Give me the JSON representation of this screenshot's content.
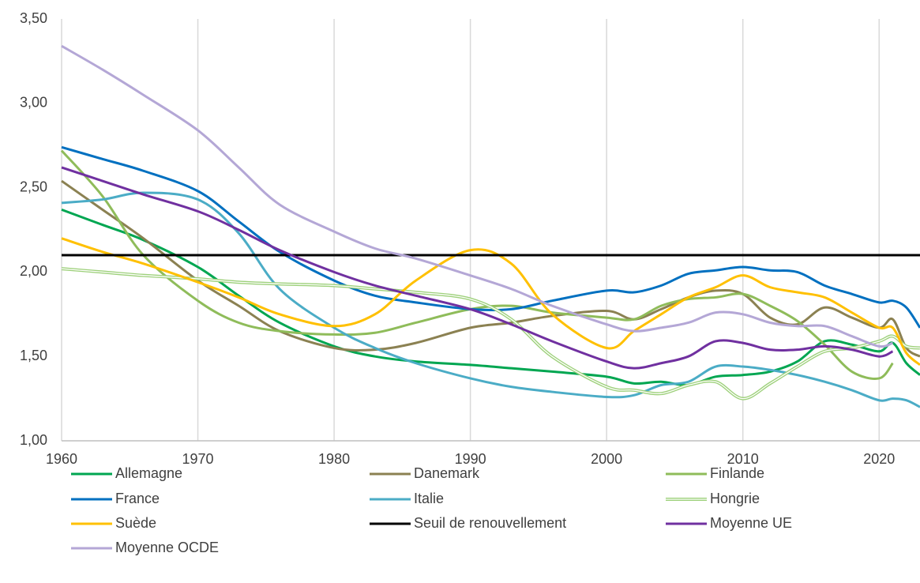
{
  "chart_data": {
    "type": "line",
    "x": [
      1960,
      1963,
      1966,
      1970,
      1973,
      1976,
      1980,
      1983,
      1986,
      1990,
      1993,
      1996,
      2000,
      2002,
      2004,
      2006,
      2008,
      2010,
      2012,
      2014,
      2016,
      2018,
      2020,
      2021,
      2022,
      2023
    ],
    "xlim": [
      1960,
      2023
    ],
    "xticks": [
      1960,
      1970,
      1980,
      1990,
      2000,
      2010,
      2020
    ],
    "ylim": [
      1,
      3.5
    ],
    "yticks": [
      {
        "value": 1,
        "label": "1,00"
      },
      {
        "value": 1.5,
        "label": "1,50"
      },
      {
        "value": 2,
        "label": "2,00"
      },
      {
        "value": 2.5,
        "label": "2,50"
      },
      {
        "value": 3,
        "label": "3,00"
      },
      {
        "value": 3.5,
        "label": "3,50"
      }
    ],
    "grid": "x",
    "series": [
      {
        "name": "Allemagne",
        "color": "#00a651",
        "values": [
          2.37,
          2.28,
          2.19,
          2.03,
          1.86,
          1.7,
          1.56,
          1.5,
          1.47,
          1.45,
          1.43,
          1.41,
          1.38,
          1.34,
          1.35,
          1.33,
          1.38,
          1.39,
          1.41,
          1.47,
          1.59,
          1.57,
          1.53,
          1.58,
          1.46,
          1.39
        ]
      },
      {
        "name": "Danemark",
        "color": "#8b8152",
        "values": [
          2.54,
          2.37,
          2.2,
          1.95,
          1.8,
          1.65,
          1.55,
          1.54,
          1.58,
          1.67,
          1.7,
          1.74,
          1.77,
          1.72,
          1.78,
          1.85,
          1.89,
          1.87,
          1.73,
          1.69,
          1.79,
          1.73,
          1.67,
          1.72,
          1.55,
          1.5
        ]
      },
      {
        "name": "Finlande",
        "color": "#8fbc5a",
        "values": [
          2.72,
          2.45,
          2.1,
          1.83,
          1.7,
          1.65,
          1.63,
          1.64,
          1.7,
          1.78,
          1.8,
          1.76,
          1.73,
          1.72,
          1.8,
          1.84,
          1.85,
          1.87,
          1.8,
          1.71,
          1.57,
          1.41,
          1.37,
          1.46,
          null,
          null
        ]
      },
      {
        "name": "France",
        "color": "#0070c0",
        "values": [
          2.74,
          2.67,
          2.6,
          2.48,
          2.3,
          2.12,
          1.95,
          1.86,
          1.82,
          1.78,
          1.78,
          1.83,
          1.89,
          1.88,
          1.92,
          1.99,
          2.01,
          2.03,
          2.01,
          2.0,
          1.92,
          1.87,
          1.82,
          1.83,
          1.79,
          1.67
        ]
      },
      {
        "name": "Italie",
        "color": "#4bacc6",
        "values": [
          2.41,
          2.43,
          2.47,
          2.43,
          2.23,
          1.9,
          1.67,
          1.55,
          1.46,
          1.37,
          1.32,
          1.29,
          1.26,
          1.27,
          1.33,
          1.35,
          1.44,
          1.44,
          1.42,
          1.39,
          1.35,
          1.3,
          1.24,
          1.25,
          1.24,
          1.2
        ]
      },
      {
        "name": "Hongrie",
        "color": "#9dd07a",
        "style": "double",
        "values": [
          2.02,
          2.0,
          1.98,
          1.96,
          1.94,
          1.93,
          1.92,
          1.9,
          1.88,
          1.84,
          1.72,
          1.5,
          1.32,
          1.3,
          1.28,
          1.33,
          1.35,
          1.25,
          1.34,
          1.44,
          1.53,
          1.55,
          1.59,
          1.62,
          1.56,
          1.55
        ]
      },
      {
        "name": "Suède",
        "color": "#ffc000",
        "values": [
          2.2,
          2.12,
          2.05,
          1.94,
          1.85,
          1.75,
          1.68,
          1.75,
          1.95,
          2.13,
          2.05,
          1.75,
          1.55,
          1.65,
          1.75,
          1.85,
          1.91,
          1.98,
          1.91,
          1.88,
          1.85,
          1.76,
          1.67,
          1.67,
          1.52,
          1.45
        ]
      },
      {
        "name": "Seuil de renouvellement",
        "color": "#000000",
        "values": [
          2.1,
          2.1,
          2.1,
          2.1,
          2.1,
          2.1,
          2.1,
          2.1,
          2.1,
          2.1,
          2.1,
          2.1,
          2.1,
          2.1,
          2.1,
          2.1,
          2.1,
          2.1,
          2.1,
          2.1,
          2.1,
          2.1,
          2.1,
          2.1,
          2.1,
          2.1
        ]
      },
      {
        "name": "Moyenne UE",
        "color": "#7030a0",
        "values": [
          2.62,
          2.54,
          2.46,
          2.36,
          2.25,
          2.13,
          2.0,
          1.92,
          1.86,
          1.78,
          1.69,
          1.59,
          1.47,
          1.43,
          1.46,
          1.5,
          1.59,
          1.58,
          1.54,
          1.54,
          1.56,
          1.54,
          1.5,
          1.53,
          null,
          null
        ]
      },
      {
        "name": "Moyenne OCDE",
        "color": "#b4a7d6",
        "values": [
          3.34,
          3.2,
          3.05,
          2.84,
          2.62,
          2.4,
          2.24,
          2.14,
          2.08,
          1.98,
          1.9,
          1.8,
          1.69,
          1.65,
          1.67,
          1.7,
          1.76,
          1.75,
          1.7,
          1.68,
          1.68,
          1.62,
          1.56,
          1.58,
          null,
          null
        ]
      }
    ]
  }
}
